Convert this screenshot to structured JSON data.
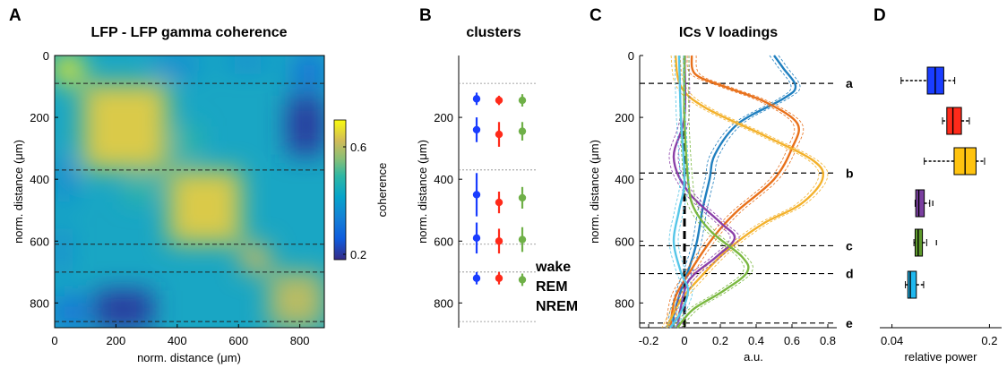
{
  "panels": {
    "A": "A",
    "B": "B",
    "C": "C",
    "D": "D"
  },
  "chart_data": [
    {
      "panel": "A",
      "type": "heatmap",
      "title": "LFP - LFP gamma coherence",
      "xlabel": "norm. distance (μm)",
      "ylabel": "norm. distance (μm)",
      "xlim": [
        0,
        880
      ],
      "ylim": [
        0,
        880
      ],
      "y_reversed": true,
      "xticks": [
        0,
        200,
        400,
        600,
        800
      ],
      "yticks": [
        0,
        200,
        400,
        600,
        800
      ],
      "colorbar": {
        "label": "coherence",
        "ticks": [
          0.2,
          0.6
        ],
        "range": [
          0.18,
          0.7
        ],
        "colormap": "parula"
      },
      "boundaries": [
        90,
        370,
        610,
        700,
        860
      ],
      "blocks": [
        {
          "x": [
            0,
            90
          ],
          "y": [
            0,
            90
          ],
          "value": 0.68
        },
        {
          "x": [
            90,
            370
          ],
          "y": [
            90,
            370
          ],
          "value": 0.64
        },
        {
          "x": [
            370,
            610
          ],
          "y": [
            370,
            610
          ],
          "value": 0.64
        },
        {
          "x": [
            610,
            700
          ],
          "y": [
            610,
            700
          ],
          "value": 0.62
        },
        {
          "x": [
            700,
            880
          ],
          "y": [
            700,
            880
          ],
          "value": 0.6
        },
        {
          "x": [
            130,
            320
          ],
          "y": [
            760,
            880
          ],
          "value": 0.2
        },
        {
          "x": [
            760,
            880
          ],
          "y": [
            130,
            320
          ],
          "value": 0.2
        },
        {
          "x": [
            780,
            880
          ],
          "y": [
            0,
            100
          ],
          "value": 0.3
        },
        {
          "x": [
            0,
            100
          ],
          "y": [
            780,
            880
          ],
          "value": 0.3
        },
        {
          "x": [
            0,
            60
          ],
          "y": [
            330,
            470
          ],
          "value": 0.35
        },
        {
          "x": [
            330,
            470
          ],
          "y": [
            0,
            60
          ],
          "value": 0.35
        },
        {
          "x": [
            0,
            40
          ],
          "y": [
            560,
            700
          ],
          "value": 0.34
        },
        {
          "x": [
            560,
            700
          ],
          "y": [
            0,
            40
          ],
          "value": 0.34
        },
        {
          "x": [
            230,
            330
          ],
          "y": [
            400,
            470
          ],
          "value": 0.5
        },
        {
          "x": [
            400,
            470
          ],
          "y": [
            230,
            330
          ],
          "value": 0.5
        }
      ]
    },
    {
      "panel": "B",
      "type": "scatter",
      "title": "clusters",
      "ylabel": "norm. distance (μm)",
      "ylim": [
        0,
        880
      ],
      "y_reversed": true,
      "yticks": [
        200,
        400,
        600,
        800
      ],
      "boundaries": [
        90,
        370,
        610,
        700,
        860
      ],
      "series": [
        {
          "name": "wake",
          "color": "#1a3dff",
          "points": [
            {
              "y": 140,
              "lo": 120,
              "hi": 160
            },
            {
              "y": 240,
              "lo": 200,
              "hi": 280
            },
            {
              "y": 450,
              "lo": 380,
              "hi": 520
            },
            {
              "y": 590,
              "lo": 540,
              "hi": 640
            },
            {
              "y": 720,
              "lo": 700,
              "hi": 740
            }
          ]
        },
        {
          "name": "REM",
          "color": "#ff2a1a",
          "points": [
            {
              "y": 145,
              "lo": 130,
              "hi": 160
            },
            {
              "y": 255,
              "lo": 215,
              "hi": 295
            },
            {
              "y": 475,
              "lo": 440,
              "hi": 510
            },
            {
              "y": 600,
              "lo": 560,
              "hi": 640
            },
            {
              "y": 720,
              "lo": 700,
              "hi": 740
            }
          ]
        },
        {
          "name": "NREM",
          "color": "#6fb048",
          "points": [
            {
              "y": 145,
              "lo": 125,
              "hi": 165
            },
            {
              "y": 245,
              "lo": 215,
              "hi": 275
            },
            {
              "y": 460,
              "lo": 425,
              "hi": 495
            },
            {
              "y": 595,
              "lo": 555,
              "hi": 635
            },
            {
              "y": 725,
              "lo": 705,
              "hi": 745
            }
          ]
        }
      ]
    },
    {
      "panel": "C",
      "type": "line",
      "title": "ICs V loadings",
      "xlabel": "a.u.",
      "ylabel": "norm. distance (μm)",
      "xlim": [
        -0.25,
        0.85
      ],
      "ylim": [
        0,
        880
      ],
      "y_reversed": true,
      "xticks": [
        -0.2,
        0,
        0.2,
        0.4,
        0.6,
        0.8
      ],
      "xticklabels": [
        "-0.2",
        "0",
        "0.2",
        "0.4",
        "0.6",
        "0.8"
      ],
      "yticks": [
        0,
        200,
        400,
        600,
        800
      ],
      "boundaries": [
        {
          "y": 90,
          "label": "a"
        },
        {
          "y": 380,
          "label": "b"
        },
        {
          "y": 615,
          "label": "c"
        },
        {
          "y": 705,
          "label": "d"
        },
        {
          "y": 865,
          "label": "e"
        }
      ],
      "series": [
        {
          "color": "#1f7fbf",
          "points": [
            [
              0.5,
              0
            ],
            [
              0.55,
              40
            ],
            [
              0.62,
              100
            ],
            [
              0.55,
              140
            ],
            [
              0.3,
              220
            ],
            [
              0.17,
              320
            ],
            [
              0.14,
              400
            ],
            [
              0.1,
              500
            ],
            [
              0.07,
              600
            ],
            [
              0.03,
              680
            ],
            [
              -0.02,
              760
            ],
            [
              -0.06,
              840
            ],
            [
              -0.06,
              880
            ]
          ]
        },
        {
          "color": "#e8701a",
          "points": [
            [
              0.04,
              0
            ],
            [
              0.06,
              60
            ],
            [
              0.22,
              100
            ],
            [
              0.45,
              150
            ],
            [
              0.63,
              220
            ],
            [
              0.6,
              300
            ],
            [
              0.5,
              400
            ],
            [
              0.3,
              500
            ],
            [
              0.2,
              560
            ],
            [
              0.12,
              620
            ],
            [
              0.03,
              700
            ],
            [
              -0.05,
              780
            ],
            [
              -0.08,
              880
            ]
          ]
        },
        {
          "color": "#f3b12b",
          "points": [
            [
              -0.05,
              0
            ],
            [
              -0.02,
              100
            ],
            [
              0.12,
              170
            ],
            [
              0.45,
              260
            ],
            [
              0.72,
              340
            ],
            [
              0.77,
              400
            ],
            [
              0.65,
              480
            ],
            [
              0.45,
              540
            ],
            [
              0.3,
              600
            ],
            [
              0.2,
              650
            ],
            [
              0.1,
              710
            ],
            [
              -0.02,
              790
            ],
            [
              -0.1,
              880
            ]
          ]
        },
        {
          "color": "#8a3fa8",
          "points": [
            [
              0,
              0
            ],
            [
              0,
              200
            ],
            [
              -0.06,
              330
            ],
            [
              0.02,
              440
            ],
            [
              0.2,
              540
            ],
            [
              0.28,
              590
            ],
            [
              0.18,
              650
            ],
            [
              0.05,
              710
            ],
            [
              0.0,
              760
            ],
            [
              -0.04,
              880
            ]
          ]
        },
        {
          "color": "#7ab840",
          "points": [
            [
              0,
              0
            ],
            [
              0,
              200
            ],
            [
              0.02,
              400
            ],
            [
              0.05,
              490
            ],
            [
              0.15,
              570
            ],
            [
              0.32,
              650
            ],
            [
              0.35,
              700
            ],
            [
              0.22,
              760
            ],
            [
              0.05,
              820
            ],
            [
              -0.04,
              880
            ]
          ]
        },
        {
          "color": "#55c6e8",
          "points": [
            [
              -0.03,
              0
            ],
            [
              -0.02,
              200
            ],
            [
              0.0,
              400
            ],
            [
              -0.03,
              500
            ],
            [
              -0.06,
              600
            ],
            [
              -0.02,
              700
            ],
            [
              0.02,
              760
            ],
            [
              -0.02,
              830
            ],
            [
              -0.08,
              880
            ]
          ]
        }
      ]
    },
    {
      "panel": "D",
      "type": "box",
      "xlabel": "relative power",
      "xlim": [
        0.02,
        0.22
      ],
      "xticks": [
        0.04,
        0.2
      ],
      "xticklabels": [
        "0.04",
        "0.2"
      ],
      "boxes": [
        {
          "color": "#1a3dff",
          "whisker_lo": 0.055,
          "q1": 0.098,
          "median": 0.111,
          "q3": 0.125,
          "whisker_hi": 0.143,
          "outliers": []
        },
        {
          "color": "#ff2a1a",
          "whisker_lo": 0.123,
          "q1": 0.13,
          "median": 0.14,
          "q3": 0.154,
          "whisker_hi": 0.167,
          "outliers": []
        },
        {
          "color": "#ffc30f",
          "whisker_lo": 0.093,
          "q1": 0.142,
          "median": 0.16,
          "q3": 0.178,
          "whisker_hi": 0.192,
          "outliers": []
        },
        {
          "color": "#7a3fa0",
          "whisker_lo": 0.078,
          "q1": 0.079,
          "median": 0.084,
          "q3": 0.093,
          "whisker_hi": 0.102,
          "outliers": [
            0.107
          ]
        },
        {
          "color": "#5e9a2c",
          "whisker_lo": 0.076,
          "q1": 0.078,
          "median": 0.083,
          "q3": 0.09,
          "whisker_hi": 0.097,
          "outliers": [
            0.113
          ]
        },
        {
          "color": "#1fb8ef",
          "whisker_lo": 0.062,
          "q1": 0.066,
          "median": 0.07,
          "q3": 0.08,
          "whisker_hi": 0.092,
          "outliers": []
        }
      ]
    }
  ]
}
